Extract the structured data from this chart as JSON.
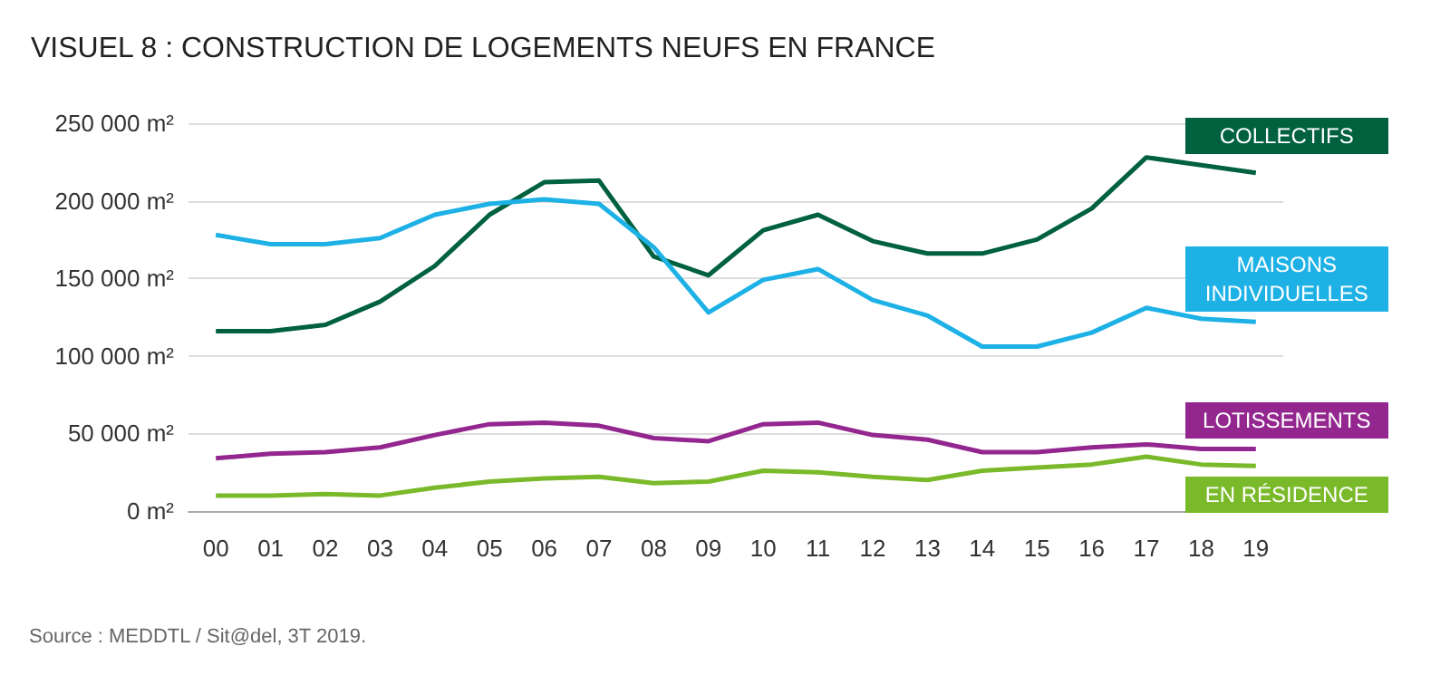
{
  "chart_data": {
    "type": "line",
    "title": "VISUEL 8 : CONSTRUCTION DE LOGEMENTS NEUFS EN FRANCE",
    "categories": [
      "00",
      "01",
      "02",
      "03",
      "04",
      "05",
      "06",
      "07",
      "08",
      "09",
      "10",
      "11",
      "12",
      "13",
      "14",
      "15",
      "16",
      "17",
      "18",
      "19"
    ],
    "series": [
      {
        "name": "COLLECTIFS",
        "color": "#00613f",
        "values": [
          116000,
          116000,
          120000,
          135000,
          158000,
          191000,
          212000,
          213000,
          164000,
          152000,
          181000,
          191000,
          174000,
          166000,
          166000,
          175000,
          195000,
          228000,
          223000,
          218000
        ]
      },
      {
        "name": "MAISONS INDIVIDUELLES",
        "color": "#1eb1e6",
        "values": [
          178000,
          172000,
          172000,
          176000,
          191000,
          198000,
          201000,
          198000,
          170000,
          128000,
          149000,
          156000,
          136000,
          126000,
          106000,
          106000,
          115000,
          131000,
          124000,
          122000
        ]
      },
      {
        "name": "LOTISSEMENTS",
        "color": "#93278f",
        "values": [
          34000,
          37000,
          38000,
          41000,
          49000,
          56000,
          57000,
          55000,
          47000,
          45000,
          56000,
          57000,
          49000,
          46000,
          38000,
          38000,
          41000,
          43000,
          40000,
          40000
        ]
      },
      {
        "name": "EN RÉSIDENCE",
        "color": "#7ab929",
        "values": [
          10000,
          10000,
          11000,
          10000,
          15000,
          19000,
          21000,
          22000,
          18000,
          19000,
          26000,
          25000,
          22000,
          20000,
          26000,
          28000,
          30000,
          35000,
          30000,
          29000
        ]
      }
    ],
    "ylim": [
      0,
      250000
    ],
    "yticks": [
      {
        "value": 0,
        "label": "0 m²"
      },
      {
        "value": 50000,
        "label": "50 000 m²"
      },
      {
        "value": 100000,
        "label": "100 000 m²"
      },
      {
        "value": 150000,
        "label": "150 000 m²"
      },
      {
        "value": 200000,
        "label": "200 000 m²"
      },
      {
        "value": 250000,
        "label": "250 000 m²"
      }
    ],
    "grid": "y",
    "legend": false,
    "marker": "none",
    "line_style": "solid",
    "annotations": [
      "Source : MEDDTL / Sit@del, 3T 2019."
    ]
  }
}
